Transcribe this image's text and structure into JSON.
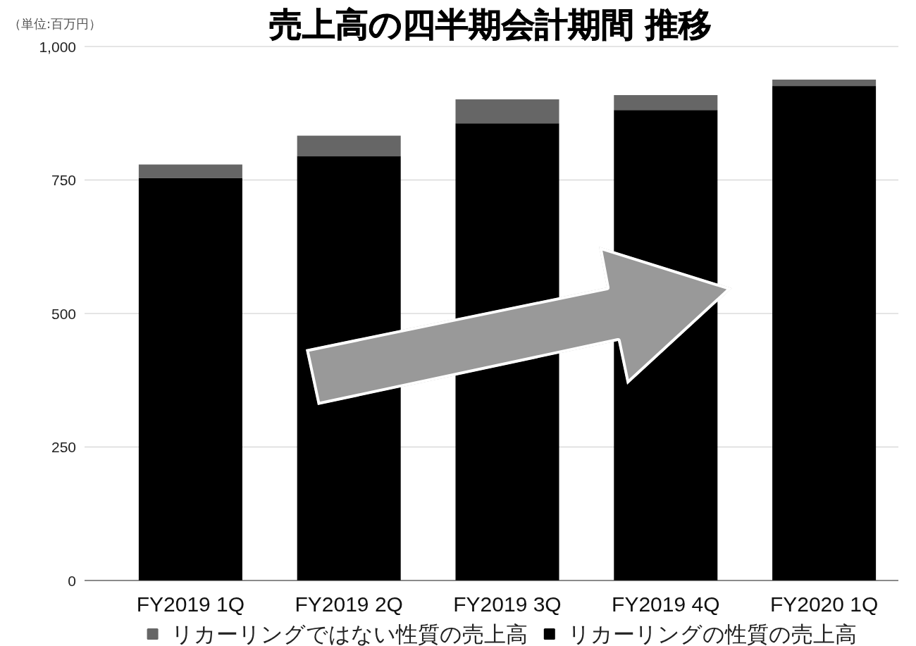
{
  "chart_data": {
    "type": "bar",
    "title": "売上高の四半期会計期間 推移",
    "ylabel": "（単位:百万円）",
    "categories": [
      "FY2019 1Q",
      "FY2019 2Q",
      "FY2019 3Q",
      "FY2019 4Q",
      "FY2020 1Q"
    ],
    "series": [
      {
        "name": "リカーリングの性質の売上高",
        "color": "#000000",
        "values": [
          754,
          795,
          856,
          881,
          926
        ]
      },
      {
        "name": "リカーリングではない性質の売上高",
        "color": "#666666",
        "values": [
          25,
          38,
          45,
          28,
          12
        ]
      }
    ],
    "stacked": true,
    "ylim": [
      0,
      1000
    ],
    "yticks": [
      0,
      250,
      500,
      750,
      {
        "value": 1000,
        "label": "1,000"
      }
    ],
    "grid": "y",
    "legend": "bottom"
  }
}
